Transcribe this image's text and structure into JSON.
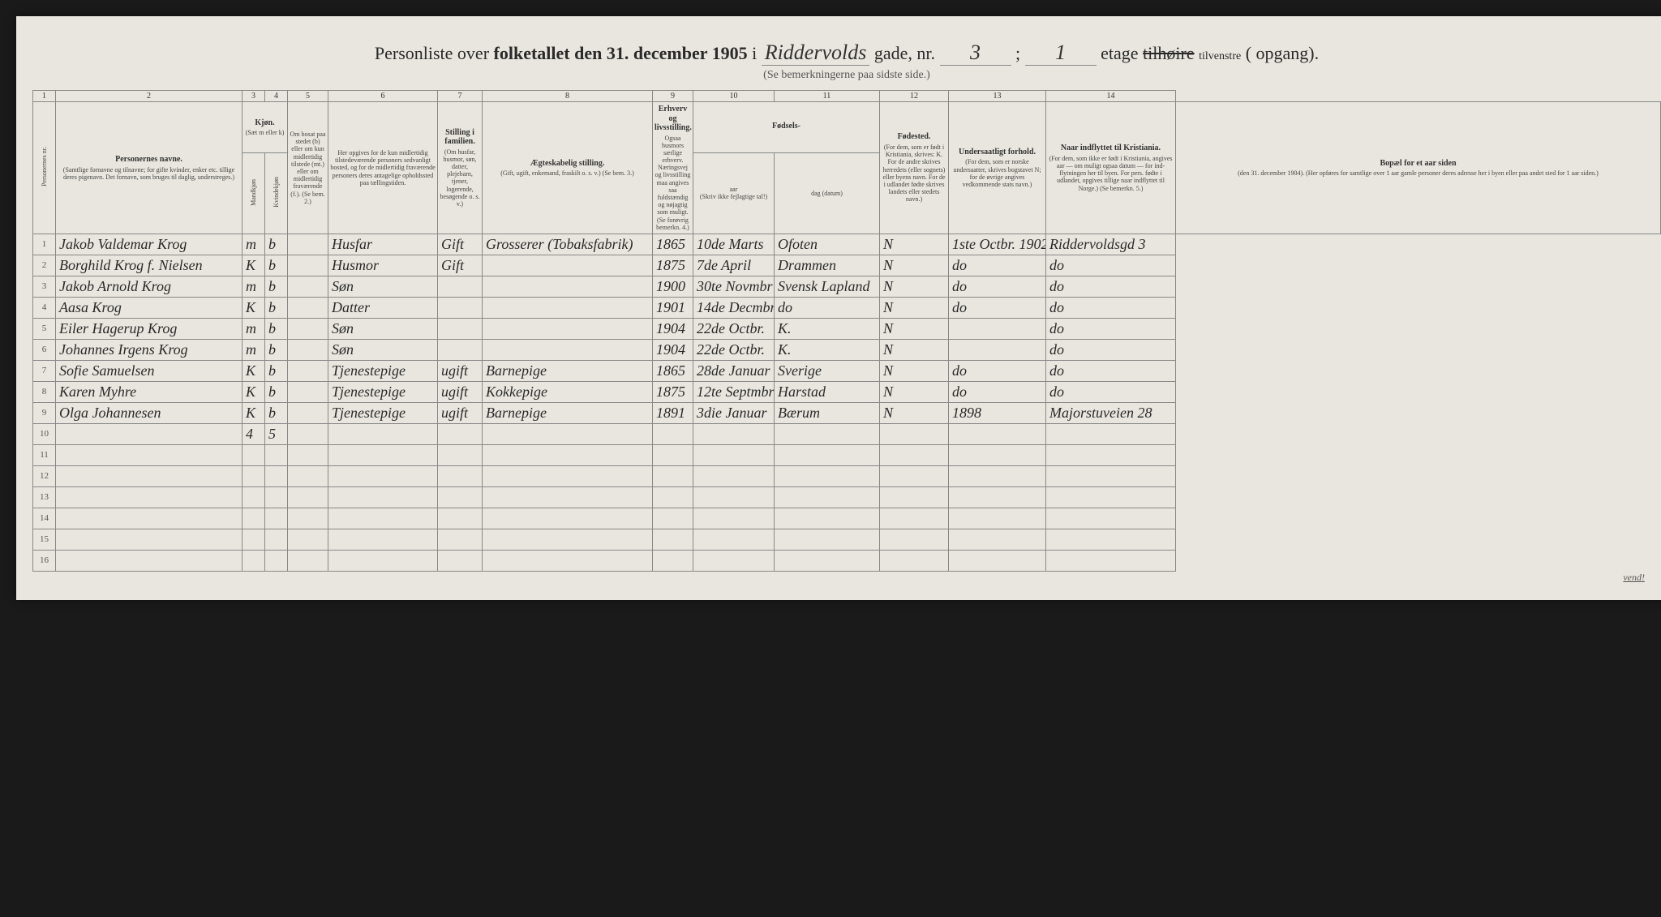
{
  "header": {
    "prefix": "Personliste over ",
    "boldPart": "folketallet den 31. december 1905",
    "i": " i ",
    "street": "Riddervolds",
    "gade": " gade, nr. ",
    "nr": "3",
    "semi": " ; ",
    "etageNum": "1",
    "etage": " etage ",
    "tilvenstre": "tilvenstre",
    "opgang": " (        opgang).",
    "sub": "(Se bemerkningerne paa sidste side.)"
  },
  "colnums": [
    "1",
    "2",
    "3",
    "4",
    "5",
    "6",
    "7",
    "8",
    "9",
    "10",
    "11",
    "12",
    "13",
    "14"
  ],
  "headers": {
    "c1": "Personernes nr.",
    "c2_title": "Personernes navne.",
    "c2_small": "(Samtlige fornavne og tilnavne; for gifte kvinder, enker etc. tillige deres pigenavn. Det fornavn, som bruges til daglig, understreges.)",
    "c3_title": "Kjøn.",
    "c3_small": "(Sæt m eller k)",
    "c34_sub1": "Mandkjøn",
    "c34_sub2": "Kvindekjøn",
    "c4_small": "Om bosat paa stedet (b) eller om kun midlertidig tilstede (mt.) eller om midlertidig fraværende (f.). (Se bem. 2.)",
    "c5_small": "Her opgives for de kun midlertidig tilstedeværende personers sedvanligt bosted, og for de midlertidig fraværende personers deres antagelige opholdssted paa tællingstiden.",
    "c6_title": "Stilling i familien.",
    "c6_small": "(Om husfar, husmor, søn, datter, plejebarn, tjener, logerende, besøgende o. s. v.)",
    "c7_title": "Ægteskabelig stilling.",
    "c7_small": "(Gift, ugift, enkemand, fraskilt o. s. v.) (Se bem. 3.)",
    "c8_title": "Erhverv og livsstilling.",
    "c8_small": "Ogsaa husmors særlige erhverv. Næringsvej og livsstilling maa angives saa fuldstændig og nøjagtig som muligt. (Se forøvrig bemerkn. 4.)",
    "c910_title": "Fødsels-",
    "c9_sub": "aar",
    "c10_sub": "dag (datum)",
    "c910_small": "(Skriv ikke fejlagtige tal!)",
    "c11_title": "Fødested.",
    "c11_small": "(For dem, som er født i Kristiania, skrives: K. For de andre skrives herredets (eller sognets) eller byens navn. For de i udlandet fødte skrives landets eller stedets navn.)",
    "c12_title": "Undersaatligt forhold.",
    "c12_small": "(For dem, som er norske undersaatter, skrives bogstavet N; for de øvrige angives vedkommende stats navn.)",
    "c13_title": "Naar indflyttet til Kristiania.",
    "c13_small": "(For dem, som ikke er født i Kristiania, angives aar — om muligt ogsaa datum — for ind-flytningen her til byen. For pers. fødte i udlandet, opgives tillige naar indflyttet til Norge.) (Se bemerkn. 5.)",
    "c14_title": "Bopæl for et aar siden",
    "c14_small": "(den 31. december 1904). (Her opføres for samtlige over 1 aar gamle personer deres adresse her i byen eller paa andet sted for 1 aar siden.)"
  },
  "rows": [
    {
      "n": "1",
      "name": "Jakob Valdemar Krog",
      "sex": "m",
      "res": "b",
      "fam": "Husfar",
      "mar": "Gift",
      "occ": "Grosserer (Tobaksfabrik)",
      "yr": "1865",
      "date": "10de Marts",
      "place": "Ofoten",
      "nat": "N",
      "moved": "1ste Octbr. 1902",
      "addr": "Riddervoldsgd 3"
    },
    {
      "n": "2",
      "name": "Borghild Krog f. Nielsen",
      "sex": "K",
      "res": "b",
      "fam": "Husmor",
      "mar": "Gift",
      "occ": "",
      "yr": "1875",
      "date": "7de April",
      "place": "Drammen",
      "nat": "N",
      "moved": "do",
      "addr": "do"
    },
    {
      "n": "3",
      "name": "Jakob Arnold Krog",
      "sex": "m",
      "res": "b",
      "fam": "Søn",
      "mar": "",
      "occ": "",
      "yr": "1900",
      "date": "30te Novmbr",
      "place": "Svensk Lapland",
      "nat": "N",
      "moved": "do",
      "addr": "do"
    },
    {
      "n": "4",
      "name": "Aasa Krog",
      "sex": "K",
      "res": "b",
      "fam": "Datter",
      "mar": "",
      "occ": "",
      "yr": "1901",
      "date": "14de Decmbr",
      "place": "do",
      "nat": "N",
      "moved": "do",
      "addr": "do"
    },
    {
      "n": "5",
      "name": "Eiler Hagerup Krog",
      "sex": "m",
      "res": "b",
      "fam": "Søn",
      "mar": "",
      "occ": "",
      "yr": "1904",
      "date": "22de Octbr.",
      "place": "K.",
      "nat": "N",
      "moved": "",
      "addr": "do"
    },
    {
      "n": "6",
      "name": "Johannes Irgens Krog",
      "sex": "m",
      "res": "b",
      "fam": "Søn",
      "mar": "",
      "occ": "",
      "yr": "1904",
      "date": "22de Octbr.",
      "place": "K.",
      "nat": "N",
      "moved": "",
      "addr": "do"
    },
    {
      "n": "7",
      "name": "Sofie Samuelsen",
      "sex": "K",
      "res": "b",
      "fam": "Tjenestepige",
      "mar": "ugift",
      "occ": "Barnepige",
      "yr": "1865",
      "date": "28de Januar",
      "place": "Sverige",
      "nat": "N",
      "moved": "do",
      "addr": "do"
    },
    {
      "n": "8",
      "name": "Karen Myhre",
      "sex": "K",
      "res": "b",
      "fam": "Tjenestepige",
      "mar": "ugift",
      "occ": "Kokkepige",
      "yr": "1875",
      "date": "12te Septmbr",
      "place": "Harstad",
      "nat": "N",
      "moved": "do",
      "addr": "do"
    },
    {
      "n": "9",
      "name": "Olga Johannesen",
      "sex": "K",
      "res": "b",
      "fam": "Tjenestepige",
      "mar": "ugift",
      "occ": "Barnepige",
      "yr": "1891",
      "date": "3die Januar",
      "place": "Bærum",
      "nat": "N",
      "moved": "1898",
      "addr": "Majorstuveien 28"
    },
    {
      "n": "10",
      "name": "",
      "sex": "4",
      "res": "5",
      "fam": "",
      "mar": "",
      "occ": "",
      "yr": "",
      "date": "",
      "place": "",
      "nat": "",
      "moved": "",
      "addr": ""
    },
    {
      "n": "11"
    },
    {
      "n": "12"
    },
    {
      "n": "13"
    },
    {
      "n": "14"
    },
    {
      "n": "15"
    },
    {
      "n": "16"
    }
  ],
  "vend": "vend!"
}
